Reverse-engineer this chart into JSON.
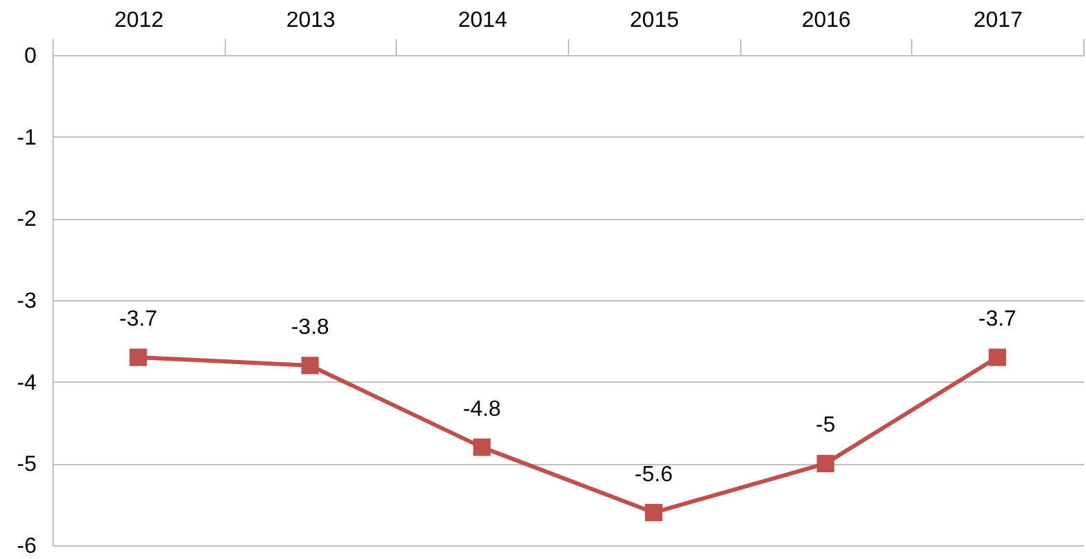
{
  "chart_data": {
    "type": "line",
    "categories": [
      "2012",
      "2013",
      "2014",
      "2015",
      "2016",
      "2017"
    ],
    "series": [
      {
        "color": "#c0504d",
        "values": [
          -3.7,
          -3.8,
          -4.8,
          -5.6,
          -5,
          -3.7
        ]
      }
    ],
    "ylim": [
      -6,
      0
    ],
    "yticks": [
      0,
      -1,
      -2,
      -3,
      -4,
      -5,
      -6
    ],
    "grid": "y",
    "marker": "square",
    "line_style": "solid",
    "data_labels": true
  }
}
